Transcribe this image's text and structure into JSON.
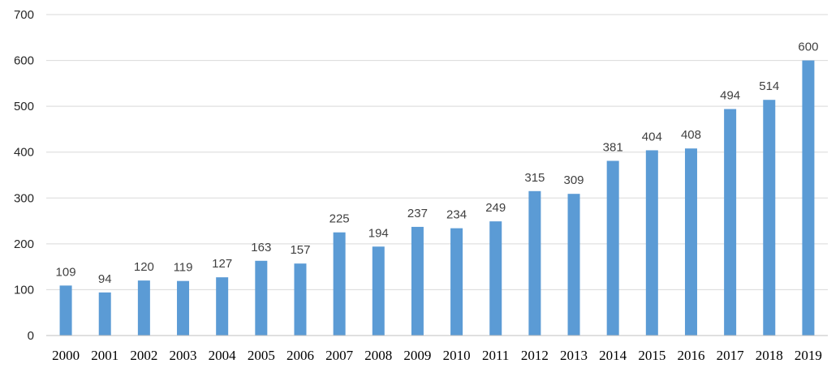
{
  "chart_data": {
    "type": "bar",
    "title": "",
    "xlabel": "",
    "ylabel": "",
    "categories": [
      "2000",
      "2001",
      "2002",
      "2003",
      "2004",
      "2005",
      "2006",
      "2007",
      "2008",
      "2009",
      "2010",
      "2011",
      "2012",
      "2013",
      "2014",
      "2015",
      "2016",
      "2017",
      "2018",
      "2019"
    ],
    "values": [
      109,
      94,
      120,
      119,
      127,
      163,
      157,
      225,
      194,
      237,
      234,
      249,
      315,
      309,
      381,
      404,
      408,
      494,
      514,
      600
    ],
    "data_labels": [
      "109",
      "94",
      "120",
      "119",
      "127",
      "163",
      "157",
      "225",
      "194",
      "237",
      "234",
      "249",
      "315",
      "309",
      "381",
      "404",
      "408",
      "494",
      "514",
      "600"
    ],
    "ylim": [
      0,
      700
    ],
    "y_ticks": [
      0,
      100,
      200,
      300,
      400,
      500,
      600,
      700
    ],
    "y_tick_labels": [
      "0",
      "100",
      "200",
      "300",
      "400",
      "500",
      "600",
      "700"
    ],
    "grid": true,
    "legend": "none",
    "colors": {
      "bar": "#5b9bd5",
      "grid": "#d9d9d9"
    }
  }
}
